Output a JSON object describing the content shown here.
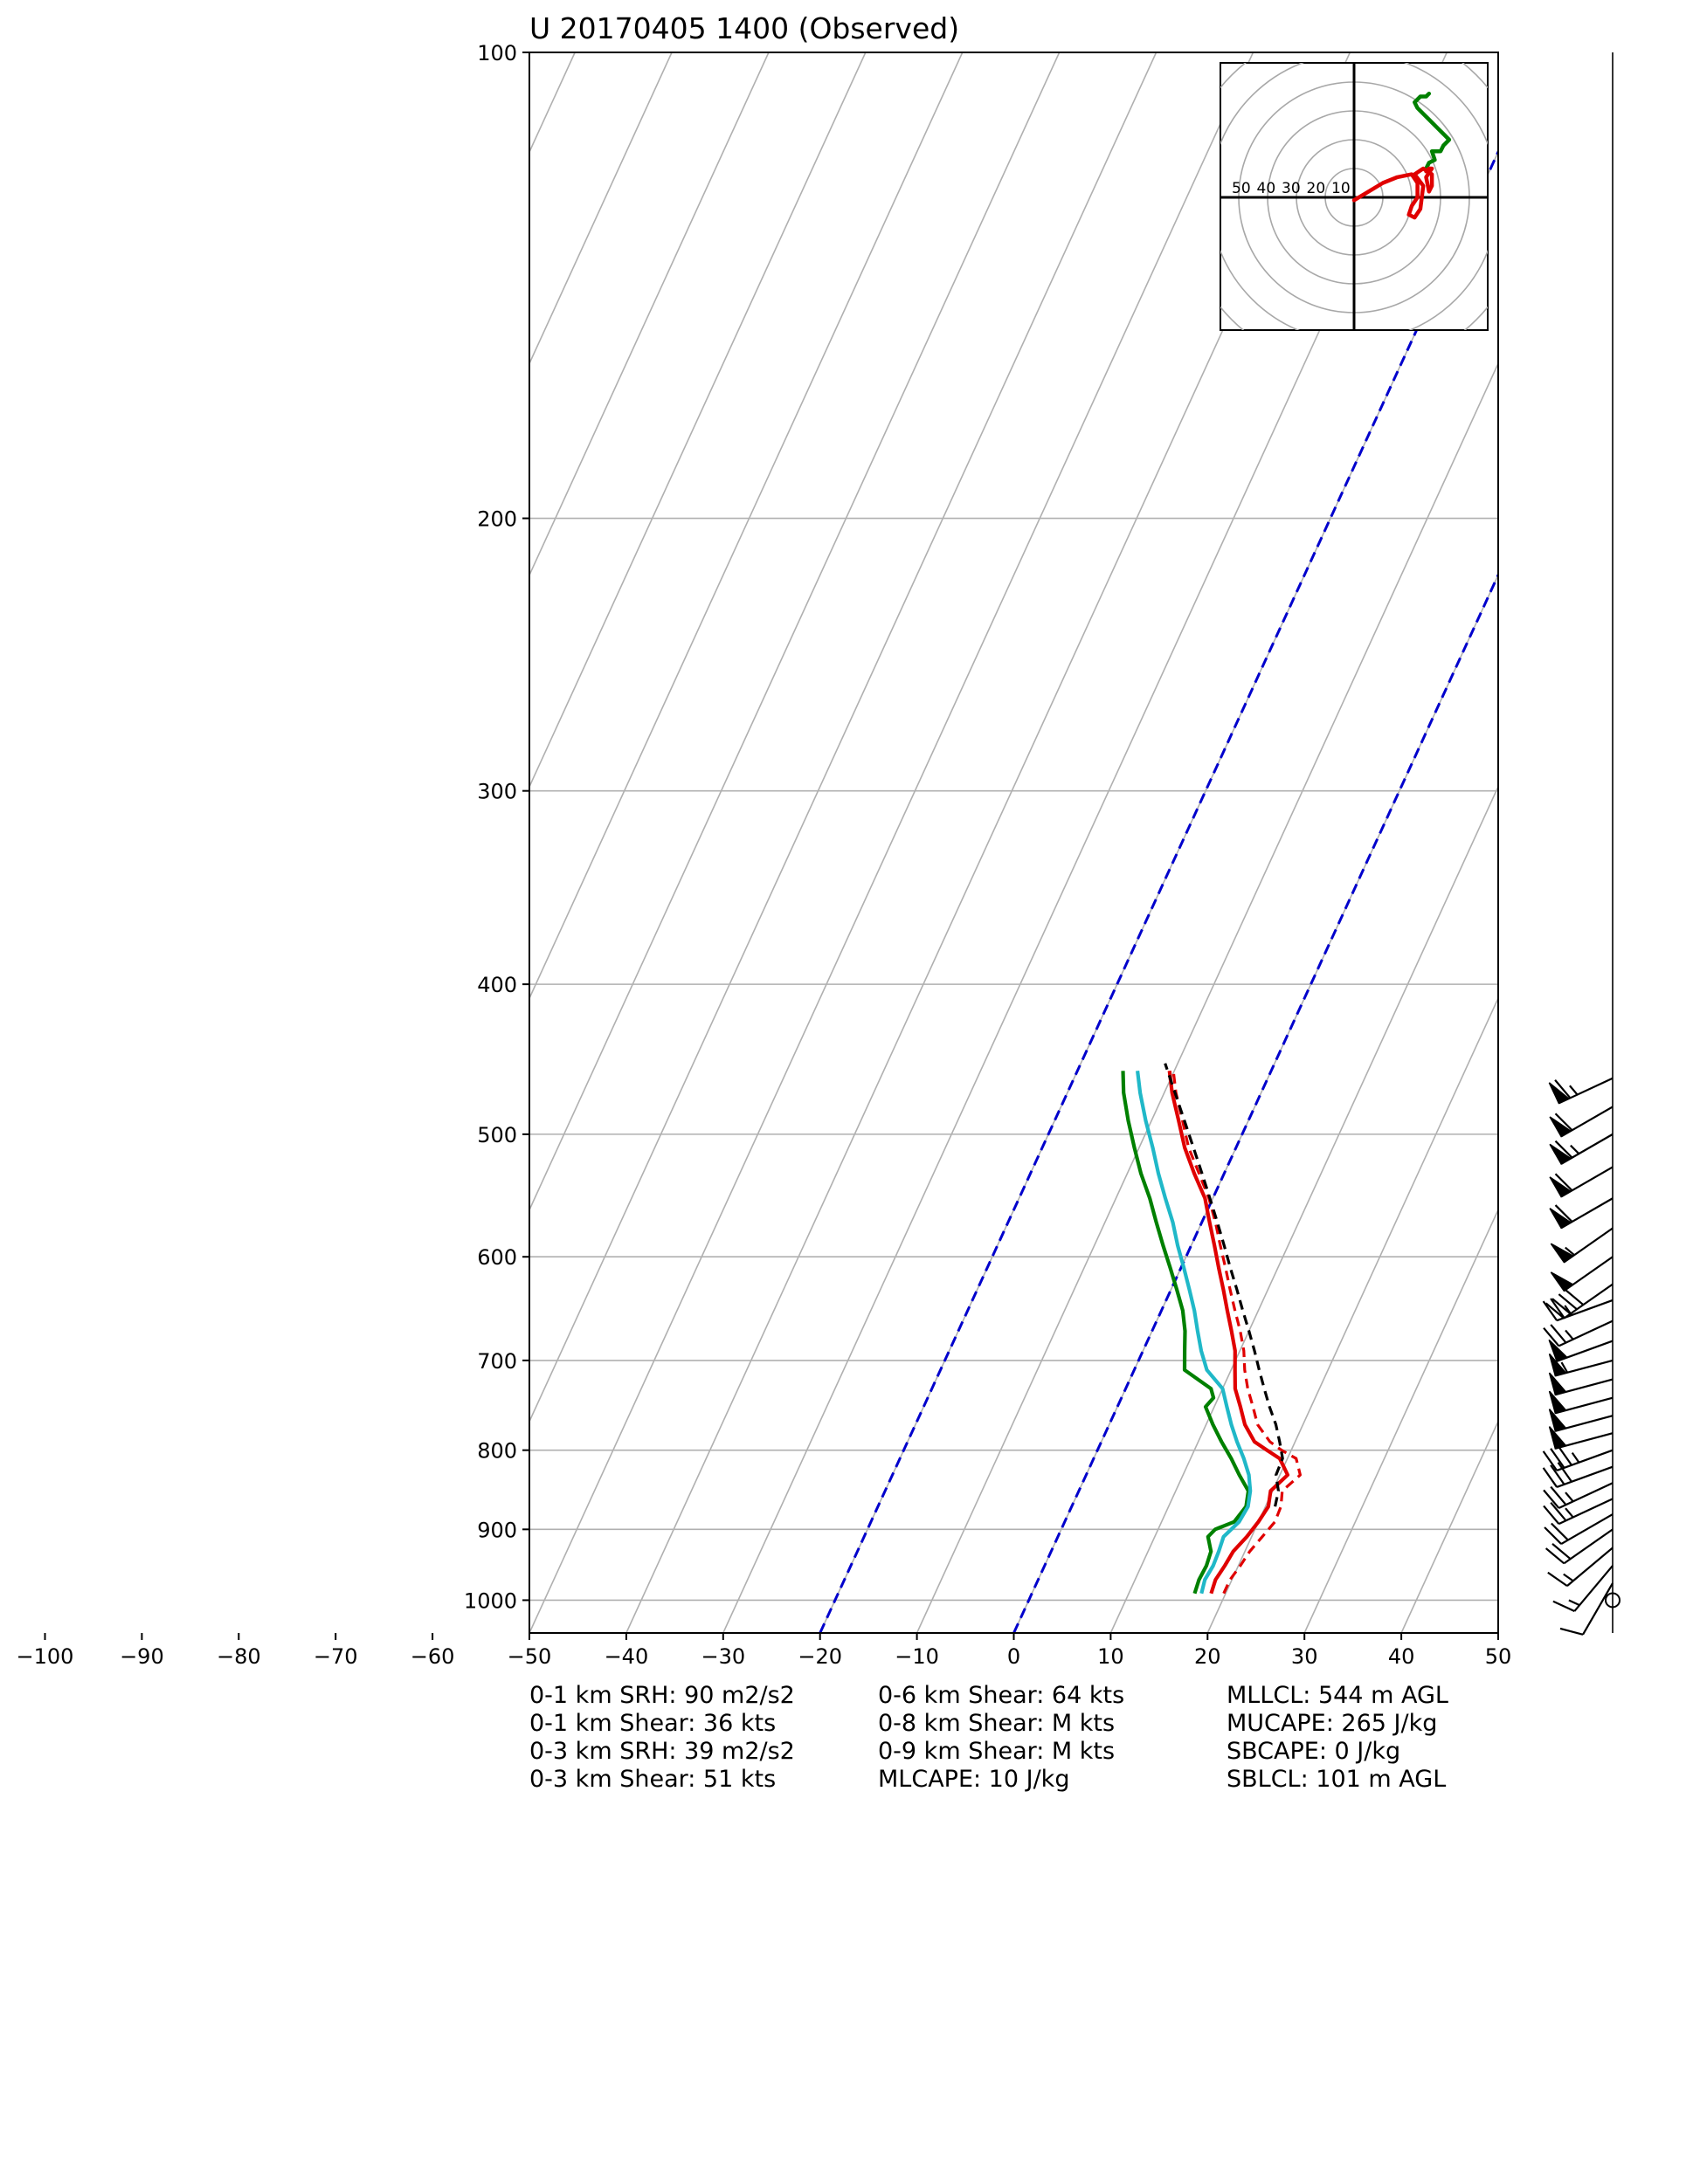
{
  "chart_data": {
    "type": "skew-t",
    "title": "U 20170405 1400   (Observed)",
    "xlabel": "",
    "ylabel": "",
    "xlim": [
      -50,
      50
    ],
    "ylim": [
      1050,
      100
    ],
    "y_scale": "log",
    "x_ticks": [
      -100,
      -90,
      -80,
      -70,
      -60,
      -50,
      -40,
      -30,
      -20,
      -10,
      0,
      10,
      20,
      30,
      40,
      50
    ],
    "x_tick_labels": [
      "−100",
      "−90",
      "−80",
      "−70",
      "−60",
      "−50",
      "−40",
      "−30",
      "−20",
      "−10",
      "0",
      "10",
      "20",
      "30",
      "40",
      "50"
    ],
    "y_ticks": [
      100,
      200,
      300,
      400,
      500,
      600,
      700,
      800,
      900,
      1000
    ],
    "grid": true,
    "series": [
      {
        "color": "#e00000",
        "style": "solid",
        "pressure": [
          990,
          970,
          950,
          930,
          910,
          890,
          870,
          850,
          830,
          810,
          800,
          790,
          770,
          750,
          730,
          710,
          690,
          670,
          650,
          630,
          610,
          590,
          570,
          550,
          530,
          510,
          490,
          470,
          455
        ],
        "values": [
          18.5,
          18.3,
          18.6,
          18.8,
          19.5,
          20.0,
          20.3,
          19.8,
          20.8,
          19.2,
          17.5,
          15.8,
          14.0,
          12.7,
          11.3,
          10.4,
          9.5,
          8.2,
          6.8,
          5.4,
          3.9,
          2.4,
          0.8,
          -0.8,
          -3.1,
          -5.3,
          -7.2,
          -9.2,
          -10.5
        ]
      },
      {
        "color": "#e00000",
        "style": "dashed",
        "pressure": [
          990,
          970,
          950,
          930,
          910,
          890,
          870,
          850,
          830,
          810,
          800,
          790,
          770,
          750,
          730,
          710,
          690,
          670,
          650,
          630,
          610,
          590,
          570,
          550,
          530,
          510,
          490,
          470,
          455
        ],
        "values": [
          19.8,
          19.8,
          20.2,
          20.5,
          21.1,
          21.7,
          21.6,
          21.0,
          22.1,
          20.9,
          19.0,
          17.4,
          15.3,
          14.0,
          12.6,
          11.4,
          10.4,
          9.1,
          7.6,
          6.1,
          4.6,
          3.0,
          1.4,
          -0.4,
          -2.6,
          -4.9,
          -6.8,
          -8.8,
          -10.1
        ]
      },
      {
        "color": "#008000",
        "style": "solid",
        "pressure": [
          990,
          970,
          950,
          930,
          910,
          900,
          890,
          870,
          850,
          830,
          810,
          790,
          770,
          750,
          740,
          730,
          710,
          690,
          670,
          650,
          630,
          610,
          590,
          570,
          550,
          530,
          510,
          490,
          470,
          455
        ],
        "values": [
          16.8,
          16.6,
          16.7,
          16.5,
          15.5,
          15.9,
          17.5,
          18.0,
          17.5,
          15.8,
          14.2,
          12.4,
          10.7,
          9.1,
          9.5,
          8.8,
          5.2,
          4.3,
          3.4,
          2.2,
          0.6,
          -1.1,
          -2.9,
          -4.7,
          -6.5,
          -8.6,
          -10.5,
          -12.4,
          -14.2,
          -15.3
        ]
      },
      {
        "color": "#20b8c8",
        "style": "solid",
        "pressure": [
          990,
          970,
          950,
          930,
          910,
          890,
          870,
          850,
          830,
          810,
          790,
          770,
          750,
          730,
          710,
          690,
          670,
          650,
          630,
          610,
          590,
          570,
          550,
          530,
          510,
          490,
          470,
          455
        ],
        "values": [
          17.5,
          17.2,
          17.4,
          17.3,
          17.1,
          18.0,
          18.2,
          17.7,
          16.8,
          15.5,
          14.0,
          12.6,
          11.3,
          10.0,
          7.5,
          6.0,
          4.7,
          3.4,
          1.9,
          0.3,
          -1.4,
          -3.0,
          -4.9,
          -6.8,
          -8.6,
          -10.6,
          -12.5,
          -13.8
        ]
      },
      {
        "color": "#000000",
        "style": "dashed",
        "pressure": [
          870,
          850,
          830,
          810,
          790,
          770,
          750,
          730,
          710,
          690,
          670,
          650,
          630,
          610,
          590,
          570,
          550,
          530,
          510,
          490,
          470,
          450
        ],
        "values": [
          21.0,
          20.6,
          19.6,
          19.5,
          18.4,
          17.2,
          15.7,
          14.3,
          12.9,
          11.5,
          10.0,
          8.4,
          6.8,
          5.1,
          3.4,
          1.6,
          -0.3,
          -2.3,
          -4.4,
          -6.6,
          -8.9,
          -11.3
        ]
      }
    ],
    "reference_lines": [
      {
        "color": "#0000cc",
        "style": "dashed",
        "surface_temperature": -20
      },
      {
        "color": "#0000cc",
        "style": "dashed",
        "surface_temperature": 0
      }
    ],
    "wind_barbs": {
      "pressure": [
        460,
        480,
        500,
        525,
        550,
        575,
        600,
        625,
        640,
        660,
        680,
        700,
        720,
        740,
        760,
        780,
        800,
        820,
        840,
        860,
        880,
        900,
        925,
        950,
        975,
        1000
      ],
      "speed_kts": [
        65,
        60,
        65,
        60,
        60,
        55,
        50,
        40,
        25,
        25,
        50,
        55,
        50,
        50,
        50,
        50,
        35,
        30,
        25,
        25,
        20,
        20,
        15,
        15,
        10,
        0
      ],
      "direction_deg": [
        245,
        240,
        240,
        240,
        240,
        235,
        235,
        235,
        250,
        245,
        250,
        255,
        255,
        255,
        255,
        255,
        250,
        250,
        245,
        245,
        240,
        235,
        230,
        220,
        210,
        0
      ]
    },
    "hodograph": {
      "ring_labels": [
        "50",
        "40",
        "30",
        "20",
        "10"
      ],
      "segments": [
        {
          "color": "#008000",
          "u": [
            25,
            26,
            28,
            27,
            30,
            31,
            33,
            31,
            29,
            26,
            24,
            22,
            21,
            23,
            25,
            26
          ],
          "v": [
            10,
            12,
            13,
            16,
            16,
            18,
            20,
            22,
            24,
            27,
            29,
            31,
            33,
            35,
            35,
            36
          ]
        },
        {
          "color": "#e00000",
          "u": [
            0,
            5,
            10,
            15,
            20,
            22,
            22,
            20,
            19,
            21,
            23,
            24,
            21,
            24,
            27,
            27,
            26,
            25,
            27,
            26,
            25
          ],
          "v": [
            -1,
            2,
            5,
            7,
            8,
            5,
            0,
            -3,
            -6,
            -7,
            -4,
            4,
            8,
            10,
            8,
            4,
            2,
            7,
            10,
            10,
            9
          ]
        }
      ]
    }
  },
  "stats": {
    "col1": [
      "0-1 km SRH: 90 m2/s2",
      "0-1 km Shear: 36 kts",
      "0-3 km SRH: 39 m2/s2",
      "0-3 km Shear: 51 kts"
    ],
    "col2": [
      "0-6 km Shear: 64 kts",
      "0-8 km Shear: M kts",
      "0-9 km Shear: M kts",
      "MLCAPE: 10 J/kg"
    ],
    "col3": [
      "MLLCL: 544 m AGL",
      "MUCAPE: 265 J/kg",
      "SBCAPE: 0 J/kg",
      "SBLCL: 101 m AGL"
    ]
  }
}
